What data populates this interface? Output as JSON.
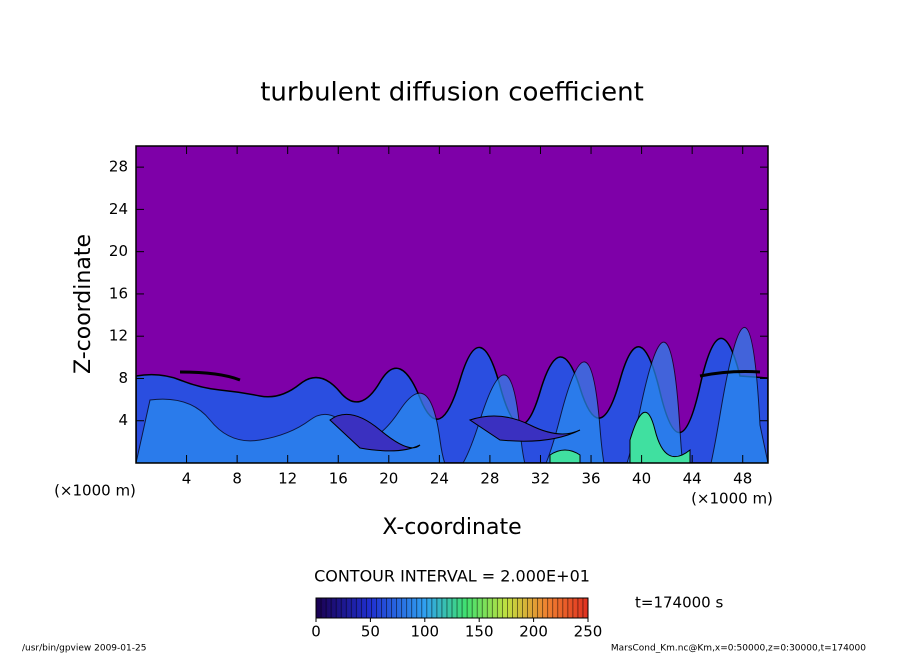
{
  "chart_data": {
    "type": "contour",
    "title": "turbulent diffusion coefficient",
    "xlabel": "X-coordinate",
    "ylabel": "Z-coordinate",
    "x_unit": "(×1000 m)",
    "y_unit": "(×1000 m)",
    "xlim": [
      0,
      50
    ],
    "xticks": [
      4,
      8,
      12,
      16,
      20,
      24,
      28,
      32,
      36,
      40,
      44,
      48
    ],
    "ylim": [
      0,
      30
    ],
    "yticks": [
      4,
      8,
      12,
      16,
      20,
      24,
      28
    ],
    "contour_interval": "CONTOUR INTERVAL = 2.000E+01",
    "time": "t=174000 s",
    "colorbar": {
      "clim": [
        0,
        250
      ],
      "ticks": [
        0,
        50,
        100,
        150,
        200,
        250
      ]
    },
    "footer_left": "/usr/bin/gpview   2009-01-25",
    "footer_right": "MarsCond_Km.nc@Km,x=0:50000,z=0:30000,t=174000"
  }
}
